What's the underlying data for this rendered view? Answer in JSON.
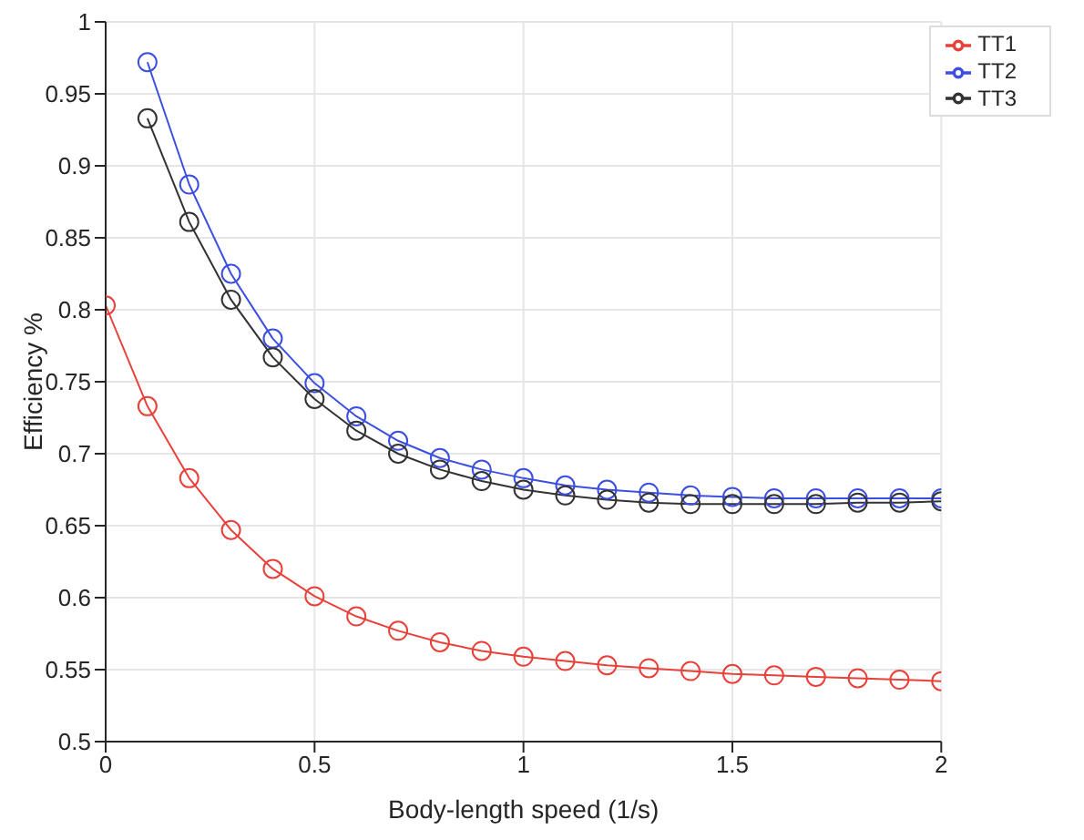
{
  "chart_data": {
    "type": "line",
    "xlabel": "Body-length speed (1/s)",
    "ylabel": "Efficiency %",
    "x": [
      0,
      0.1,
      0.2,
      0.3,
      0.4,
      0.5,
      0.6,
      0.7,
      0.8,
      0.9,
      1,
      1.1,
      1.2,
      1.3,
      1.4,
      1.5,
      1.6,
      1.7,
      1.8,
      1.9,
      2
    ],
    "series": [
      {
        "name": "TT1",
        "color": "#e8413a",
        "values": [
          0.803,
          0.733,
          0.683,
          0.647,
          0.62,
          0.601,
          0.587,
          0.577,
          0.569,
          0.563,
          0.559,
          0.556,
          0.553,
          0.551,
          0.549,
          0.547,
          0.546,
          0.545,
          0.544,
          0.543,
          0.542
        ]
      },
      {
        "name": "TT2",
        "color": "#3c4fe0",
        "values": [
          null,
          0.972,
          0.887,
          0.825,
          0.78,
          0.749,
          0.726,
          0.709,
          0.697,
          0.689,
          0.683,
          0.678,
          0.675,
          0.673,
          0.671,
          0.67,
          0.669,
          0.669,
          0.669,
          0.669,
          0.669
        ]
      },
      {
        "name": "TT3",
        "color": "#333333",
        "values": [
          null,
          0.933,
          0.861,
          0.807,
          0.767,
          0.738,
          0.716,
          0.7,
          0.689,
          0.681,
          0.675,
          0.671,
          0.668,
          0.666,
          0.665,
          0.665,
          0.665,
          0.665,
          0.666,
          0.666,
          0.667
        ]
      }
    ],
    "xlim": [
      0,
      2
    ],
    "xticks": [
      0,
      0.5,
      1,
      1.5,
      2
    ],
    "ylim": [
      0.5,
      1
    ],
    "yticks": [
      0.5,
      0.55,
      0.6,
      0.65,
      0.7,
      0.75,
      0.8,
      0.85,
      0.9,
      0.95,
      1
    ],
    "grid": true,
    "legend": "top right",
    "marker": "circle",
    "line_style": "solid"
  }
}
